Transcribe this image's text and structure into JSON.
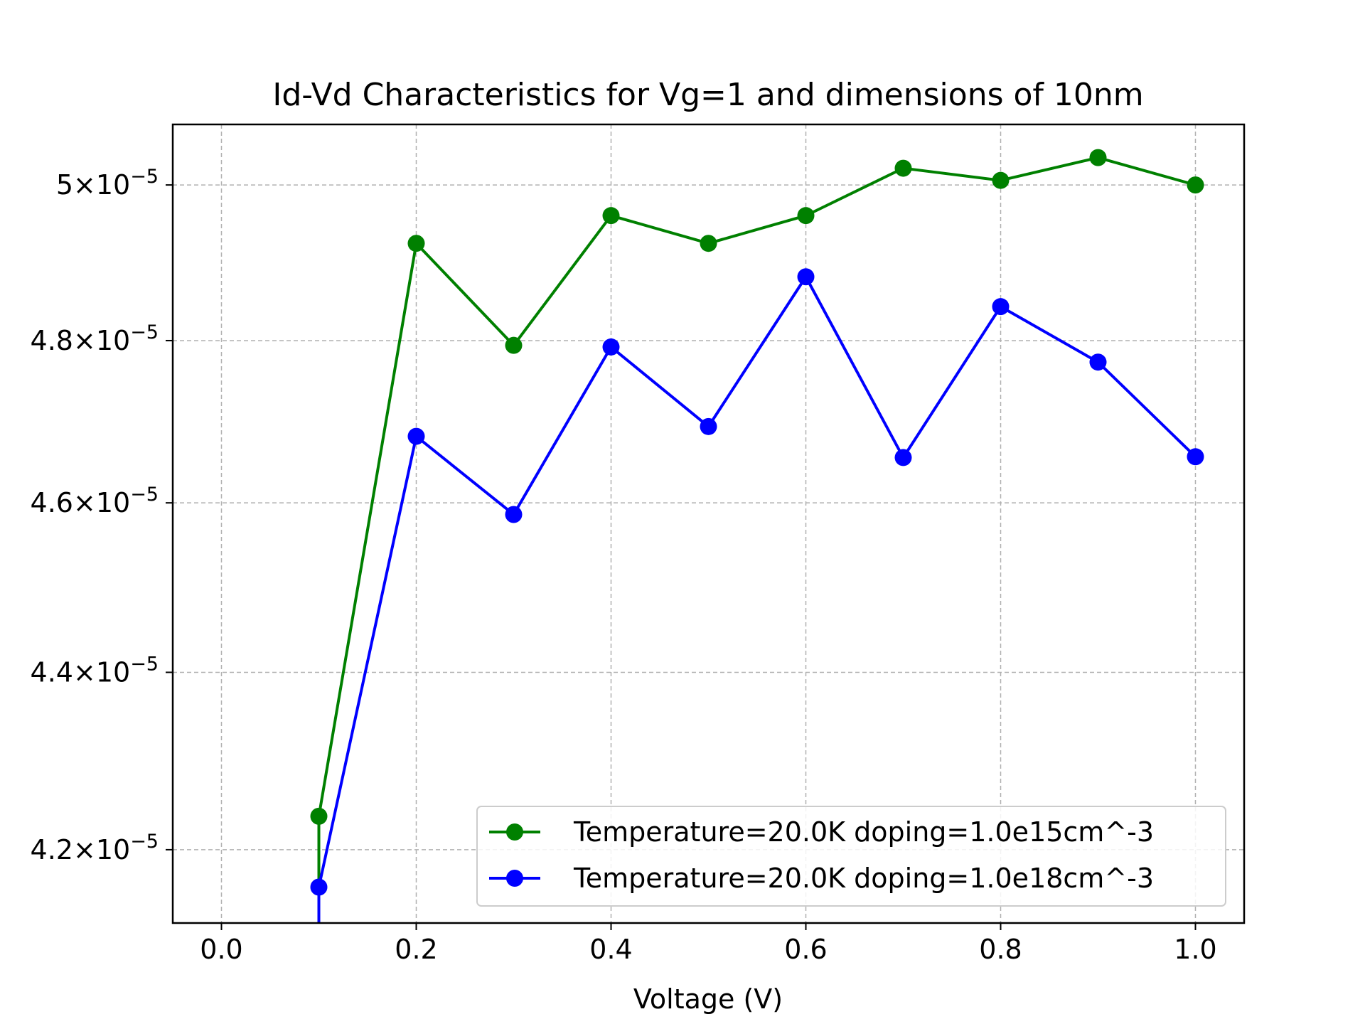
{
  "chart_data": {
    "type": "line",
    "title": "Id-Vd Characteristics for Vg=1 and dimensions of 10nm",
    "xlabel": "Voltage (V)",
    "ylabel": "",
    "xlim": [
      -0.05,
      1.05
    ],
    "ylim": [
      4.12e-05,
      5.08e-05
    ],
    "y_scale": "log",
    "grid": true,
    "legend_position": "lower-right",
    "x_ticks": [
      {
        "value": 0.0,
        "label": "0.0"
      },
      {
        "value": 0.2,
        "label": "0.2"
      },
      {
        "value": 0.4,
        "label": "0.4"
      },
      {
        "value": 0.6,
        "label": "0.6"
      },
      {
        "value": 0.8,
        "label": "0.8"
      },
      {
        "value": 1.0,
        "label": "1.0"
      }
    ],
    "y_ticks": [
      {
        "value": 4.2e-05,
        "mantissa": "4.2",
        "exponent": "−5"
      },
      {
        "value": 4.4e-05,
        "mantissa": "4.4",
        "exponent": "−5"
      },
      {
        "value": 4.6e-05,
        "mantissa": "4.6",
        "exponent": "−5"
      },
      {
        "value": 4.8e-05,
        "mantissa": "4.8",
        "exponent": "−5"
      },
      {
        "value": 5e-05,
        "mantissa": "5",
        "exponent": "−5"
      }
    ],
    "y_tick_base": "10",
    "x": [
      0.0,
      0.1,
      0.2,
      0.3,
      0.4,
      0.5,
      0.6,
      0.7,
      0.8,
      0.9,
      1.0
    ],
    "series": [
      {
        "name": "Temperature=20.0K doping=1.0e15cm^-3",
        "color": "#008000",
        "values": [
          null,
          4.237e-05,
          4.924e-05,
          4.794e-05,
          4.96e-05,
          4.924e-05,
          4.96e-05,
          5.022e-05,
          5.006e-05,
          5.036e-05,
          5e-05
        ],
        "drop_below_axis_at": 0.1
      },
      {
        "name": "Temperature=20.0K doping=1.0e18cm^-3",
        "color": "#0000ff",
        "values": [
          null,
          4.159e-05,
          4.681e-05,
          4.586e-05,
          4.792e-05,
          4.693e-05,
          4.881e-05,
          4.655e-05,
          4.843e-05,
          4.773e-05,
          4.656e-05
        ],
        "drop_below_axis_at": 0.1
      }
    ]
  }
}
